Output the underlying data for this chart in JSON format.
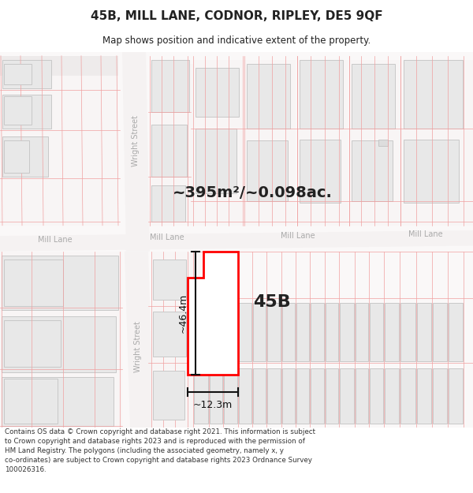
{
  "title": "45B, MILL LANE, CODNOR, RIPLEY, DE5 9QF",
  "subtitle": "Map shows position and indicative extent of the property.",
  "area_text": "~395m²/~0.098ac.",
  "label_45B": "45B",
  "dim_vertical": "~46.4m",
  "dim_horizontal": "~12.3m",
  "footer": "Contains OS data © Crown copyright and database right 2021. This information is subject to Crown copyright and database rights 2023 and is reproduced with the permission of HM Land Registry. The polygons (including the associated geometry, namely x, y co-ordinates) are subject to Crown copyright and database rights 2023 Ordnance Survey 100026316.",
  "bg_color": "#ffffff",
  "map_bg": "#ffffff",
  "building_fill": "#e8e8e8",
  "building_edge": "#c8c8c8",
  "prop_line_color": "#f0a0a0",
  "highlight_edge": "#ff0000",
  "highlight_fill": "#ffffff",
  "street_label_color": "#aaaaaa",
  "dim_color": "#222222",
  "title_color": "#222222",
  "footer_color": "#333333",
  "title_fontsize": 11,
  "subtitle_fontsize": 8.5,
  "area_fontsize": 14,
  "label_fontsize": 16,
  "dim_fontsize": 9,
  "street_fontsize": 7
}
